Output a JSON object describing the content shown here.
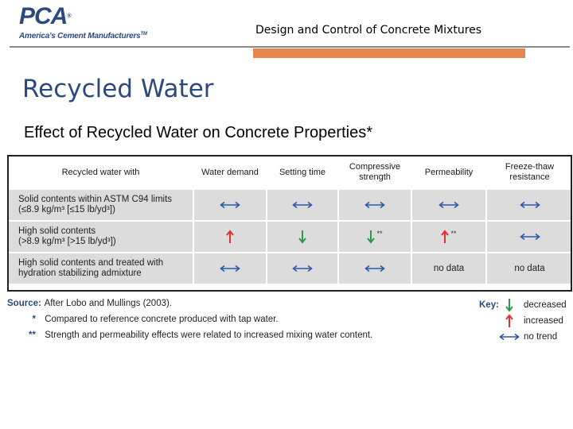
{
  "header": {
    "logo_text": "PCA",
    "logo_tagline": "America's Cement Manufacturers",
    "deck_title": "Design and Control of Concrete Mixtures"
  },
  "slide": {
    "title": "Recycled Water",
    "subtitle": "Effect of Recycled Water on Concrete Properties*"
  },
  "table": {
    "headers": [
      "Recycled water with",
      "Water demand",
      "Setting time",
      "Compressive strength",
      "Permeability",
      "Freeze-thaw resistance"
    ],
    "rows": [
      {
        "desc_line1": "Solid contents within ASTM C94 limits",
        "desc_line2": "(≤8.9 kg/m³ [≤15 lb/yd³])",
        "cells": [
          {
            "type": "no-trend"
          },
          {
            "type": "no-trend"
          },
          {
            "type": "no-trend"
          },
          {
            "type": "no-trend"
          },
          {
            "type": "no-trend"
          }
        ]
      },
      {
        "desc_line1": "High solid contents",
        "desc_line2": "(>8.9 kg/m³ [>15 lb/yd³])",
        "cells": [
          {
            "type": "increased"
          },
          {
            "type": "decreased"
          },
          {
            "type": "decreased",
            "note": "**"
          },
          {
            "type": "increased",
            "note": "**"
          },
          {
            "type": "no-trend"
          }
        ]
      },
      {
        "desc_line1": "High solid contents and treated with",
        "desc_line2": "hydration stabilizing admixture",
        "cells": [
          {
            "type": "no-trend"
          },
          {
            "type": "no-trend"
          },
          {
            "type": "no-trend"
          },
          {
            "type": "text",
            "text": "no data"
          },
          {
            "type": "text",
            "text": "no data"
          }
        ]
      }
    ]
  },
  "notes": {
    "source_label": "Source:",
    "source_text": "After Lobo and Mullings (2003).",
    "star1_mark": "*",
    "star1_text": "Compared to reference concrete produced with tap water.",
    "star2_mark": "**",
    "star2_text": "Strength and permeability effects were related to increased mixing water content."
  },
  "key": {
    "label": "Key:",
    "decreased": "decreased",
    "increased": "increased",
    "no_trend": "no trend"
  },
  "colors": {
    "brand_blue": "#2a4a7d",
    "accent_orange": "#e8864e",
    "increase_red": "#e03030",
    "decrease_green": "#2e9a4a",
    "notrend_blue": "#2a58a8"
  },
  "icons": {
    "no_trend": "double-arrow-horizontal-icon",
    "increased": "arrow-up-icon",
    "decreased": "arrow-down-icon"
  }
}
